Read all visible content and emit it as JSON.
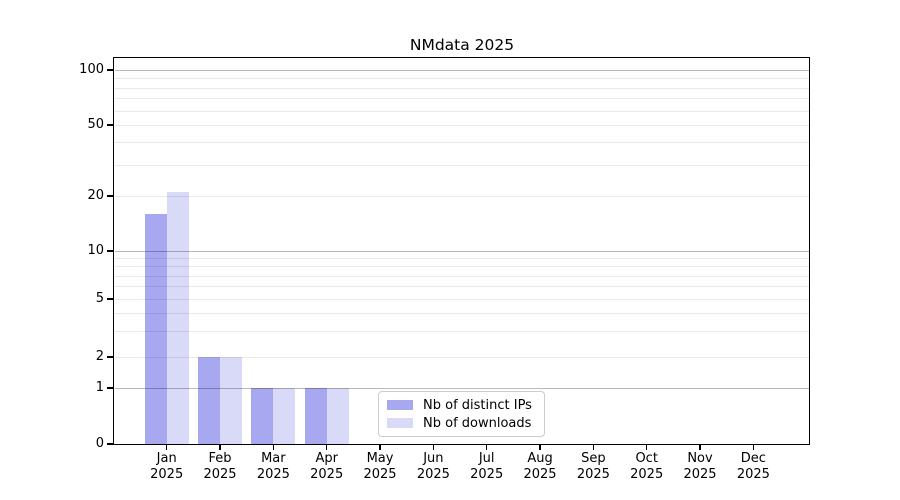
{
  "page": {
    "background": "#ffffff"
  },
  "chart_data": {
    "type": "bar",
    "title": "NMdata 2025",
    "categories": [
      "Jan 2025",
      "Feb 2025",
      "Mar 2025",
      "Apr 2025",
      "May 2025",
      "Jun 2025",
      "Jul 2025",
      "Aug 2025",
      "Sep 2025",
      "Oct 2025",
      "Nov 2025",
      "Dec 2025"
    ],
    "months": [
      {
        "month": "Jan",
        "year": "2025"
      },
      {
        "month": "Feb",
        "year": "2025"
      },
      {
        "month": "Mar",
        "year": "2025"
      },
      {
        "month": "Apr",
        "year": "2025"
      },
      {
        "month": "May",
        "year": "2025"
      },
      {
        "month": "Jun",
        "year": "2025"
      },
      {
        "month": "Jul",
        "year": "2025"
      },
      {
        "month": "Aug",
        "year": "2025"
      },
      {
        "month": "Sep",
        "year": "2025"
      },
      {
        "month": "Oct",
        "year": "2025"
      },
      {
        "month": "Nov",
        "year": "2025"
      },
      {
        "month": "Dec",
        "year": "2025"
      }
    ],
    "series": [
      {
        "name": "Nb of distinct IPs",
        "color": "#a8a8f0",
        "values": [
          16,
          2,
          1,
          1,
          0,
          0,
          0,
          0,
          0,
          0,
          0,
          0
        ]
      },
      {
        "name": "Nb of downloads",
        "color": "#d9d9f8",
        "values": [
          21,
          2,
          1,
          1,
          0,
          0,
          0,
          0,
          0,
          0,
          0,
          0
        ]
      }
    ],
    "y_axis": {
      "tick_values": [
        100,
        50,
        20,
        10,
        5,
        2,
        1,
        0
      ],
      "tick_labels": [
        "100",
        "50",
        "20",
        "10",
        "5",
        "2",
        "1",
        "0"
      ],
      "scale": "log above 1, linear below 1",
      "major_gridlines": [
        1,
        10,
        100
      ],
      "minor_gridlines": [
        2,
        3,
        4,
        5,
        6,
        7,
        8,
        9,
        20,
        30,
        40,
        50,
        60,
        70,
        80,
        90
      ],
      "ylim": [
        0,
        117
      ]
    },
    "xlabel": "",
    "ylabel": "",
    "grid": true,
    "legend": {
      "position": "lower center",
      "items": [
        "Nb of distinct IPs",
        "Nb of downloads"
      ]
    },
    "colors": {
      "bar_distinct_ips": "#a8a8f0",
      "bar_downloads": "#d9d9f8",
      "major_grid": "#bababa",
      "minor_grid": "#e9e9e9",
      "axis": "#000000",
      "text": "#000000"
    }
  }
}
